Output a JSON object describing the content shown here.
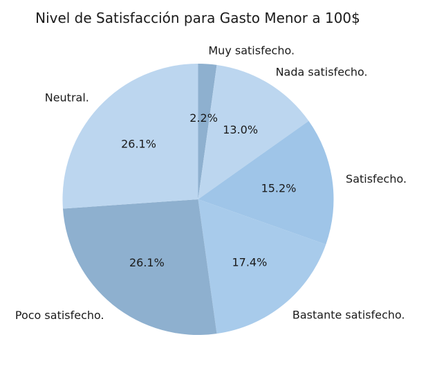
{
  "chart_data": {
    "type": "pie",
    "title": "Nivel de Satisfacción para Gasto Menor a 100$",
    "start_angle_deg": 90,
    "direction": "clockwise",
    "slices": [
      {
        "label": "Muy satisfecho.",
        "value": 2.2,
        "pct_label": "2.2%",
        "color": "#8eb0cf"
      },
      {
        "label": "Nada satisfecho.",
        "value": 13.0,
        "pct_label": "13.0%",
        "color": "#bcd6ef"
      },
      {
        "label": "Satisfecho.",
        "value": 15.2,
        "pct_label": "15.2%",
        "color": "#9fc5e8"
      },
      {
        "label": "Bastante satisfecho.",
        "value": 17.4,
        "pct_label": "17.4%",
        "color": "#a8cbeb"
      },
      {
        "label": "Poco satisfecho.",
        "value": 26.1,
        "pct_label": "26.1%",
        "color": "#8eb0cf"
      },
      {
        "label": "Neutral.",
        "value": 26.1,
        "pct_label": "26.1%",
        "color": "#bcd6ef"
      }
    ]
  }
}
